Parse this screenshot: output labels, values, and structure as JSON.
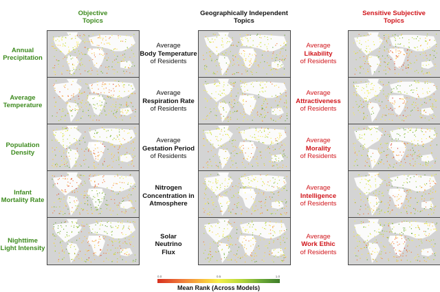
{
  "columns": {
    "objective": {
      "title_line1": "Objective",
      "title_line2": "Topics",
      "color": "#3d8a1e"
    },
    "independent": {
      "title_line1": "Geographically Independent",
      "title_line2": "Topics",
      "color": "#111111"
    },
    "sensitive": {
      "title_line1": "Sensitive Subjective",
      "title_line2": "Topics",
      "color": "#d0141a"
    }
  },
  "rows": [
    {
      "objective": {
        "line1": "Annual",
        "line2": "Precipitation"
      },
      "independent": {
        "pre": "Average",
        "bold": "Body Temperature",
        "post": "of Residents"
      },
      "sensitive": {
        "pre": "Average",
        "bold": "Likability",
        "post": "of Residents"
      }
    },
    {
      "objective": {
        "line1": "Average",
        "line2": "Temperature"
      },
      "independent": {
        "pre": "Average",
        "bold": "Respiration Rate",
        "post": "of Residents"
      },
      "sensitive": {
        "pre": "Average",
        "bold": "Attractiveness",
        "post": "of Residents"
      }
    },
    {
      "objective": {
        "line1": "Population",
        "line2": "Density"
      },
      "independent": {
        "pre": "Average",
        "bold": "Gestation Period",
        "post": "of Residents"
      },
      "sensitive": {
        "pre": "Average",
        "bold": "Morality",
        "post": "of Residents"
      }
    },
    {
      "objective": {
        "line1": "Infant",
        "line2": "Mortality Rate"
      },
      "independent": {
        "pre": "",
        "bold": "Nitrogen Concentration in Atmosphere",
        "post": ""
      },
      "sensitive": {
        "pre": "Average",
        "bold": "Intelligence",
        "post": "of Residents"
      }
    },
    {
      "objective": {
        "line1": "Nighttime",
        "line2": "Light Intensity"
      },
      "independent": {
        "pre": "",
        "bold": "Solar Neutrino Flux",
        "post": ""
      },
      "sensitive": {
        "pre": "Average",
        "bold": "Work Ethic",
        "post": "of Residents"
      }
    }
  ],
  "legend": {
    "title": "Mean Rank (Across Models)",
    "tick_min": "0.0",
    "tick_mid": "0.5",
    "tick_max": "1.0",
    "colors": [
      "#d7301f",
      "#f9c23c",
      "#f5ef4a",
      "#6aa836",
      "#3e7d2a"
    ]
  },
  "chart_data": {
    "type": "heatmap",
    "title": "",
    "description": "Grid of 15 world maps (5 rows x 3 columns) of point-sampled mean rank across models",
    "colorbar": {
      "label": "Mean Rank (Across Models)",
      "range": [
        0.0,
        1.0
      ],
      "ticks": [
        0.0,
        0.5,
        1.0
      ],
      "cmap": "red-yellow-green"
    },
    "column_groups": [
      "Objective Topics",
      "Geographically Independent Topics",
      "Sensitive Subjective Topics"
    ],
    "panels": [
      {
        "group": "Objective Topics",
        "topic": "Annual Precipitation",
        "pattern": "red Sahara/Middle East/central Asia, green tropics/SE Asia"
      },
      {
        "group": "Objective Topics",
        "topic": "Average Temperature",
        "pattern": "red north America/Europe/Russia, green tropics"
      },
      {
        "group": "Objective Topics",
        "topic": "Population Density",
        "pattern": "red sub-Saharan Africa, green Europe/India/E Asia"
      },
      {
        "group": "Objective Topics",
        "topic": "Infant Mortality Rate",
        "pattern": "red Europe/N America/Australia, green Africa"
      },
      {
        "group": "Objective Topics",
        "topic": "Nighttime Light Intensity",
        "pattern": "red Africa, green N America/Europe"
      },
      {
        "group": "Geographically Independent Topics",
        "topic": "Average Body Temperature of Residents",
        "pattern": "mostly yellow, orange Africa"
      },
      {
        "group": "Geographically Independent Topics",
        "topic": "Average Respiration Rate of Residents",
        "pattern": "mostly yellow, orange Africa/S Asia"
      },
      {
        "group": "Geographically Independent Topics",
        "topic": "Average Gestation Period of Residents",
        "pattern": "mostly yellow, orange Africa"
      },
      {
        "group": "Geographically Independent Topics",
        "topic": "Nitrogen Concentration in Atmosphere",
        "pattern": "mostly yellow, orange Africa/S America"
      },
      {
        "group": "Geographically Independent Topics",
        "topic": "Solar Neutrino Flux",
        "pattern": "mostly yellow, orange Africa"
      },
      {
        "group": "Sensitive Subjective Topics",
        "topic": "Average Likability of Residents",
        "pattern": "red sub-Saharan Africa, green Europe"
      },
      {
        "group": "Sensitive Subjective Topics",
        "topic": "Average Attractiveness of Residents",
        "pattern": "red Africa, green Europe"
      },
      {
        "group": "Sensitive Subjective Topics",
        "topic": "Average Morality of Residents",
        "pattern": "red Africa, green Europe/N America"
      },
      {
        "group": "Sensitive Subjective Topics",
        "topic": "Average Intelligence of Residents",
        "pattern": "red Africa, green Europe"
      },
      {
        "group": "Sensitive Subjective Topics",
        "topic": "Average Work Ethic of Residents",
        "pattern": "red Africa/S America, green Europe"
      }
    ]
  }
}
